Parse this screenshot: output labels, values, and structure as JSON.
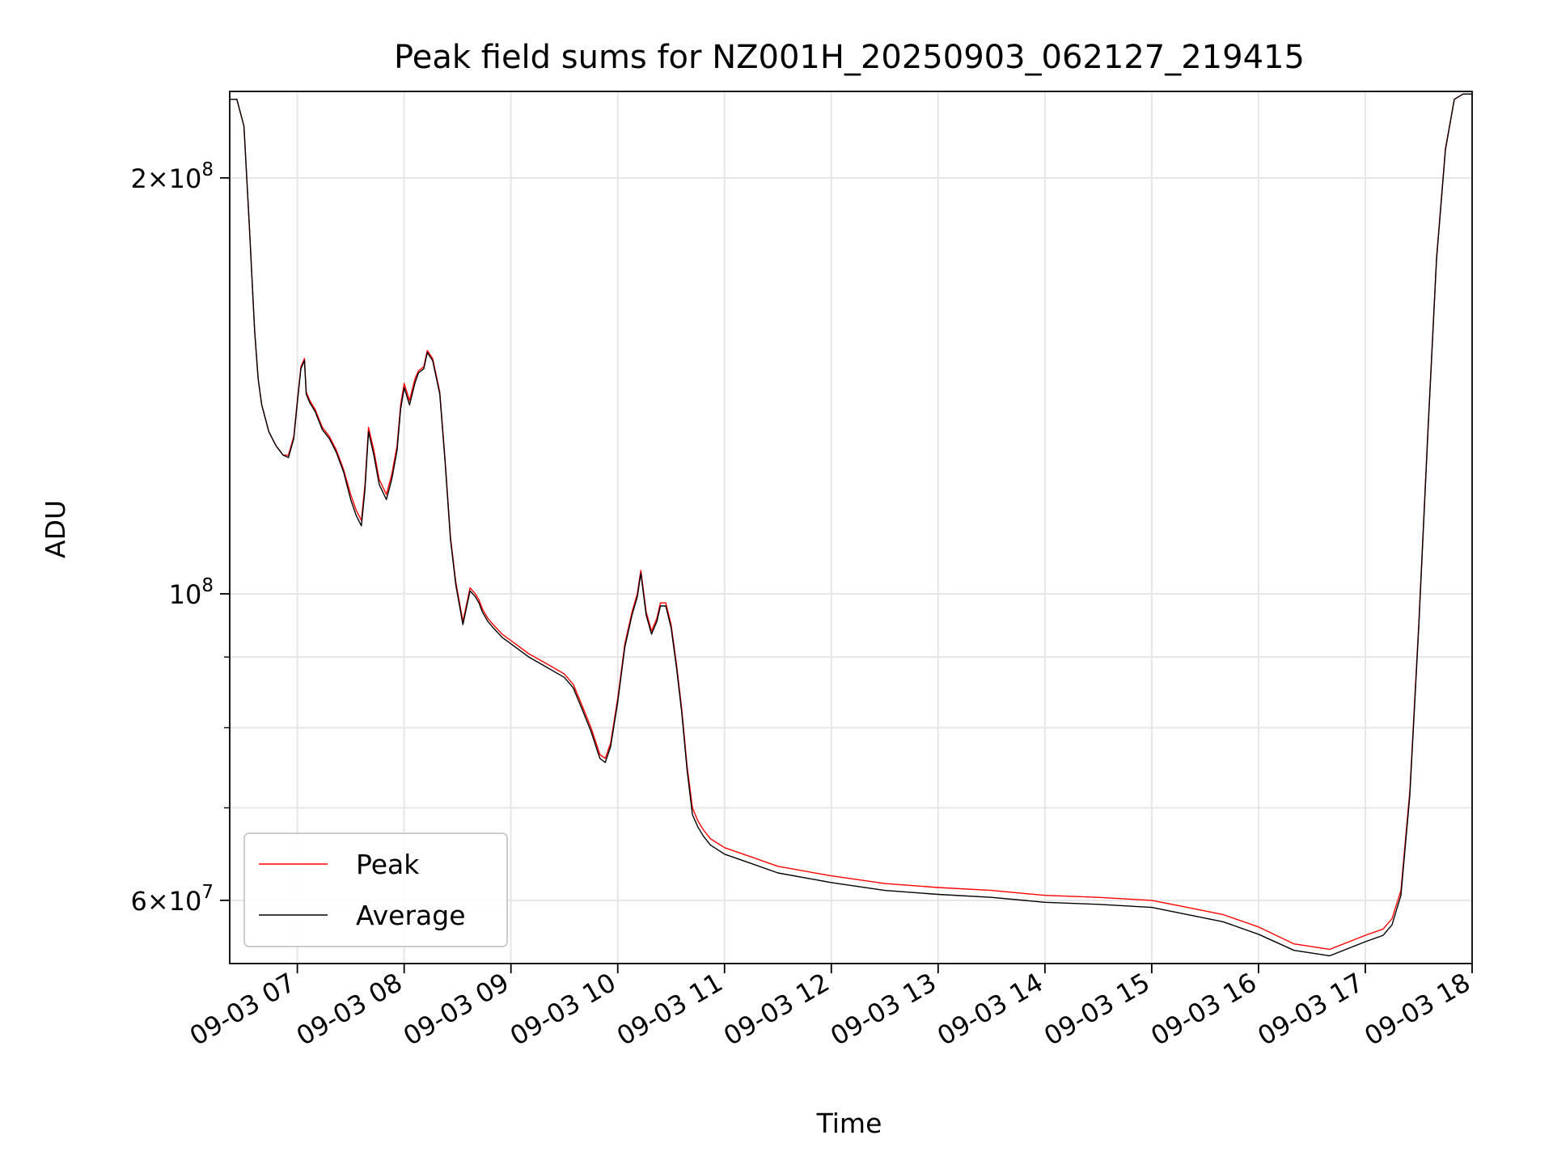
{
  "chart_data": {
    "type": "line",
    "title": "Peak field sums for NZ001H_20250903_062127_219415",
    "xlabel": "Time",
    "ylabel": "ADU",
    "x_scale": "time",
    "y_scale": "log",
    "xlim": [
      "2025-09-03T06:22:00",
      "2025-09-03T18:00:00"
    ],
    "ylim": [
      54000000,
      231000000
    ],
    "grid": true,
    "legend": "lower-left",
    "x_ticks": [
      {
        "t": "2025-09-03T07:00:00",
        "label": "09-03 07"
      },
      {
        "t": "2025-09-03T08:00:00",
        "label": "09-03 08"
      },
      {
        "t": "2025-09-03T09:00:00",
        "label": "09-03 09"
      },
      {
        "t": "2025-09-03T10:00:00",
        "label": "09-03 10"
      },
      {
        "t": "2025-09-03T11:00:00",
        "label": "09-03 11"
      },
      {
        "t": "2025-09-03T12:00:00",
        "label": "09-03 12"
      },
      {
        "t": "2025-09-03T13:00:00",
        "label": "09-03 13"
      },
      {
        "t": "2025-09-03T14:00:00",
        "label": "09-03 14"
      },
      {
        "t": "2025-09-03T15:00:00",
        "label": "09-03 15"
      },
      {
        "t": "2025-09-03T16:00:00",
        "label": "09-03 16"
      },
      {
        "t": "2025-09-03T17:00:00",
        "label": "09-03 17"
      },
      {
        "t": "2025-09-03T18:00:00",
        "label": "09-03 18"
      }
    ],
    "y_major_ticks": [
      {
        "value": 60000000,
        "mantissa": "6",
        "exp": "7"
      },
      {
        "value": 100000000,
        "mantissa": "",
        "exp": "8"
      },
      {
        "value": 200000000,
        "mantissa": "2",
        "exp": "8"
      }
    ],
    "y_minor_ticks": [
      70000000,
      80000000,
      90000000
    ],
    "series": [
      {
        "name": "Peak",
        "color": "#ff0000",
        "x": [
          "2025-09-03T06:22:00",
          "2025-09-03T06:26:00",
          "2025-09-03T06:30:00",
          "2025-09-03T06:33:00",
          "2025-09-03T06:36:00",
          "2025-09-03T06:38:00",
          "2025-09-03T06:40:00",
          "2025-09-03T06:44:00",
          "2025-09-03T06:48:00",
          "2025-09-03T06:52:00",
          "2025-09-03T06:55:00",
          "2025-09-03T06:58:00",
          "2025-09-03T07:00:00",
          "2025-09-03T07:02:00",
          "2025-09-03T07:04:00",
          "2025-09-03T07:05:00",
          "2025-09-03T07:07:00",
          "2025-09-03T07:10:00",
          "2025-09-03T07:14:00",
          "2025-09-03T07:18:00",
          "2025-09-03T07:22:00",
          "2025-09-03T07:26:00",
          "2025-09-03T07:30:00",
          "2025-09-03T07:33:00",
          "2025-09-03T07:36:00",
          "2025-09-03T07:38:00",
          "2025-09-03T07:40:00",
          "2025-09-03T07:43:00",
          "2025-09-03T07:46:00",
          "2025-09-03T07:50:00",
          "2025-09-03T07:53:00",
          "2025-09-03T07:56:00",
          "2025-09-03T07:58:00",
          "2025-09-03T08:00:00",
          "2025-09-03T08:03:00",
          "2025-09-03T08:06:00",
          "2025-09-03T08:08:00",
          "2025-09-03T08:11:00",
          "2025-09-03T08:13:00",
          "2025-09-03T08:16:00",
          "2025-09-03T08:20:00",
          "2025-09-03T08:23:00",
          "2025-09-03T08:26:00",
          "2025-09-03T08:29:00",
          "2025-09-03T08:33:00",
          "2025-09-03T08:37:00",
          "2025-09-03T08:40:00",
          "2025-09-03T08:42:00",
          "2025-09-03T08:44:00",
          "2025-09-03T08:47:00",
          "2025-09-03T08:50:00",
          "2025-09-03T08:55:00",
          "2025-09-03T09:00:00",
          "2025-09-03T09:10:00",
          "2025-09-03T09:20:00",
          "2025-09-03T09:30:00",
          "2025-09-03T09:35:00",
          "2025-09-03T09:40:00",
          "2025-09-03T09:45:00",
          "2025-09-03T09:50:00",
          "2025-09-03T09:53:00",
          "2025-09-03T09:56:00",
          "2025-09-03T10:00:00",
          "2025-09-03T10:04:00",
          "2025-09-03T10:08:00",
          "2025-09-03T10:11:00",
          "2025-09-03T10:13:00",
          "2025-09-03T10:16:00",
          "2025-09-03T10:19:00",
          "2025-09-03T10:22:00",
          "2025-09-03T10:24:00",
          "2025-09-03T10:27:00",
          "2025-09-03T10:30:00",
          "2025-09-03T10:33:00",
          "2025-09-03T10:36:00",
          "2025-09-03T10:39:00",
          "2025-09-03T10:42:00",
          "2025-09-03T10:45:00",
          "2025-09-03T10:48:00",
          "2025-09-03T10:52:00",
          "2025-09-03T11:00:00",
          "2025-09-03T11:15:00",
          "2025-09-03T11:30:00",
          "2025-09-03T12:00:00",
          "2025-09-03T12:30:00",
          "2025-09-03T13:00:00",
          "2025-09-03T13:30:00",
          "2025-09-03T14:00:00",
          "2025-09-03T14:30:00",
          "2025-09-03T15:00:00",
          "2025-09-03T15:20:00",
          "2025-09-03T15:40:00",
          "2025-09-03T16:00:00",
          "2025-09-03T16:20:00",
          "2025-09-03T16:40:00",
          "2025-09-03T17:00:00",
          "2025-09-03T17:10:00",
          "2025-09-03T17:15:00",
          "2025-09-03T17:20:00",
          "2025-09-03T17:25:00",
          "2025-09-03T17:30:00",
          "2025-09-03T17:35:00",
          "2025-09-03T17:40:00",
          "2025-09-03T17:45:00",
          "2025-09-03T17:50:00",
          "2025-09-03T17:55:00",
          "2025-09-03T18:00:00"
        ],
        "y": [
          228000000,
          228000000,
          218000000,
          185000000,
          155000000,
          143000000,
          137000000,
          131000000,
          128000000,
          126000000,
          126000000,
          130000000,
          138000000,
          146000000,
          148000000,
          140000000,
          138000000,
          136000000,
          132000000,
          130000000,
          127000000,
          123000000,
          118000000,
          115000000,
          113000000,
          120000000,
          132000000,
          127000000,
          121000000,
          118000000,
          122000000,
          128000000,
          137000000,
          142000000,
          138000000,
          143000000,
          145000000,
          146000000,
          150000000,
          148000000,
          140000000,
          125000000,
          110000000,
          102000000,
          95500000,
          101000000,
          100000000,
          99000000,
          97500000,
          96000000,
          95000000,
          93500000,
          92500000,
          90500000,
          89000000,
          87500000,
          86000000,
          83000000,
          80000000,
          76500000,
          76000000,
          78000000,
          84000000,
          92000000,
          97000000,
          100000000,
          104000000,
          97000000,
          94000000,
          96000000,
          98500000,
          98500000,
          95000000,
          89000000,
          82500000,
          75000000,
          70000000,
          68500000,
          67500000,
          66500000,
          65500000,
          64500000,
          63500000,
          62500000,
          61700000,
          61300000,
          61000000,
          60500000,
          60300000,
          60000000,
          59300000,
          58600000,
          57400000,
          55800000,
          55300000,
          56600000,
          57200000,
          58200000,
          61000000,
          72000000,
          95000000,
          130000000,
          175000000,
          210000000,
          228000000,
          230000000,
          230000000
        ]
      },
      {
        "name": "Average",
        "color": "#000000",
        "x": [
          "2025-09-03T06:22:00",
          "2025-09-03T06:26:00",
          "2025-09-03T06:30:00",
          "2025-09-03T06:33:00",
          "2025-09-03T06:36:00",
          "2025-09-03T06:38:00",
          "2025-09-03T06:40:00",
          "2025-09-03T06:44:00",
          "2025-09-03T06:48:00",
          "2025-09-03T06:52:00",
          "2025-09-03T06:55:00",
          "2025-09-03T06:58:00",
          "2025-09-03T07:00:00",
          "2025-09-03T07:02:00",
          "2025-09-03T07:04:00",
          "2025-09-03T07:05:00",
          "2025-09-03T07:07:00",
          "2025-09-03T07:10:00",
          "2025-09-03T07:14:00",
          "2025-09-03T07:18:00",
          "2025-09-03T07:22:00",
          "2025-09-03T07:26:00",
          "2025-09-03T07:30:00",
          "2025-09-03T07:33:00",
          "2025-09-03T07:36:00",
          "2025-09-03T07:38:00",
          "2025-09-03T07:40:00",
          "2025-09-03T07:43:00",
          "2025-09-03T07:46:00",
          "2025-09-03T07:50:00",
          "2025-09-03T07:53:00",
          "2025-09-03T07:56:00",
          "2025-09-03T07:58:00",
          "2025-09-03T08:00:00",
          "2025-09-03T08:03:00",
          "2025-09-03T08:06:00",
          "2025-09-03T08:08:00",
          "2025-09-03T08:11:00",
          "2025-09-03T08:13:00",
          "2025-09-03T08:16:00",
          "2025-09-03T08:20:00",
          "2025-09-03T08:23:00",
          "2025-09-03T08:26:00",
          "2025-09-03T08:29:00",
          "2025-09-03T08:33:00",
          "2025-09-03T08:37:00",
          "2025-09-03T08:40:00",
          "2025-09-03T08:42:00",
          "2025-09-03T08:44:00",
          "2025-09-03T08:47:00",
          "2025-09-03T08:50:00",
          "2025-09-03T08:55:00",
          "2025-09-03T09:00:00",
          "2025-09-03T09:10:00",
          "2025-09-03T09:20:00",
          "2025-09-03T09:30:00",
          "2025-09-03T09:35:00",
          "2025-09-03T09:40:00",
          "2025-09-03T09:45:00",
          "2025-09-03T09:50:00",
          "2025-09-03T09:53:00",
          "2025-09-03T09:56:00",
          "2025-09-03T10:00:00",
          "2025-09-03T10:04:00",
          "2025-09-03T10:08:00",
          "2025-09-03T10:11:00",
          "2025-09-03T10:13:00",
          "2025-09-03T10:16:00",
          "2025-09-03T10:19:00",
          "2025-09-03T10:22:00",
          "2025-09-03T10:24:00",
          "2025-09-03T10:27:00",
          "2025-09-03T10:30:00",
          "2025-09-03T10:33:00",
          "2025-09-03T10:36:00",
          "2025-09-03T10:39:00",
          "2025-09-03T10:42:00",
          "2025-09-03T10:45:00",
          "2025-09-03T10:48:00",
          "2025-09-03T10:52:00",
          "2025-09-03T11:00:00",
          "2025-09-03T11:15:00",
          "2025-09-03T11:30:00",
          "2025-09-03T12:00:00",
          "2025-09-03T12:30:00",
          "2025-09-03T13:00:00",
          "2025-09-03T13:30:00",
          "2025-09-03T14:00:00",
          "2025-09-03T14:30:00",
          "2025-09-03T15:00:00",
          "2025-09-03T15:20:00",
          "2025-09-03T15:40:00",
          "2025-09-03T16:00:00",
          "2025-09-03T16:20:00",
          "2025-09-03T16:40:00",
          "2025-09-03T17:00:00",
          "2025-09-03T17:10:00",
          "2025-09-03T17:15:00",
          "2025-09-03T17:20:00",
          "2025-09-03T17:25:00",
          "2025-09-03T17:30:00",
          "2025-09-03T17:35:00",
          "2025-09-03T17:40:00",
          "2025-09-03T17:45:00",
          "2025-09-03T17:50:00",
          "2025-09-03T17:55:00",
          "2025-09-03T18:00:00"
        ],
        "y": [
          228000000,
          228000000,
          218000000,
          185000000,
          155000000,
          143000000,
          137000000,
          131000000,
          128000000,
          126000000,
          125500000,
          129500000,
          137500000,
          145500000,
          147500000,
          139500000,
          137500000,
          135500000,
          131500000,
          129500000,
          126500000,
          122500000,
          117000000,
          114000000,
          112000000,
          119000000,
          131000000,
          126000000,
          120000000,
          117000000,
          121000000,
          127000000,
          136000000,
          141000000,
          137000000,
          142000000,
          144500000,
          145500000,
          149500000,
          147500000,
          139500000,
          124500000,
          109500000,
          101500000,
          95000000,
          100500000,
          99500000,
          98500000,
          97000000,
          95500000,
          94500000,
          93000000,
          92000000,
          90000000,
          88500000,
          87000000,
          85500000,
          82500000,
          79500000,
          76000000,
          75500000,
          77500000,
          83500000,
          91500000,
          96500000,
          99500000,
          103500000,
          96500000,
          93500000,
          95500000,
          98000000,
          98000000,
          94500000,
          88500000,
          82000000,
          74500000,
          69200000,
          67800000,
          66800000,
          65800000,
          64800000,
          63800000,
          62800000,
          61800000,
          61000000,
          60600000,
          60300000,
          59800000,
          59600000,
          59300000,
          58600000,
          57900000,
          56700000,
          55200000,
          54700000,
          56000000,
          56600000,
          57600000,
          60500000,
          71500000,
          94500000,
          129500000,
          174500000,
          209500000,
          228000000,
          230000000,
          230000000
        ]
      }
    ]
  }
}
